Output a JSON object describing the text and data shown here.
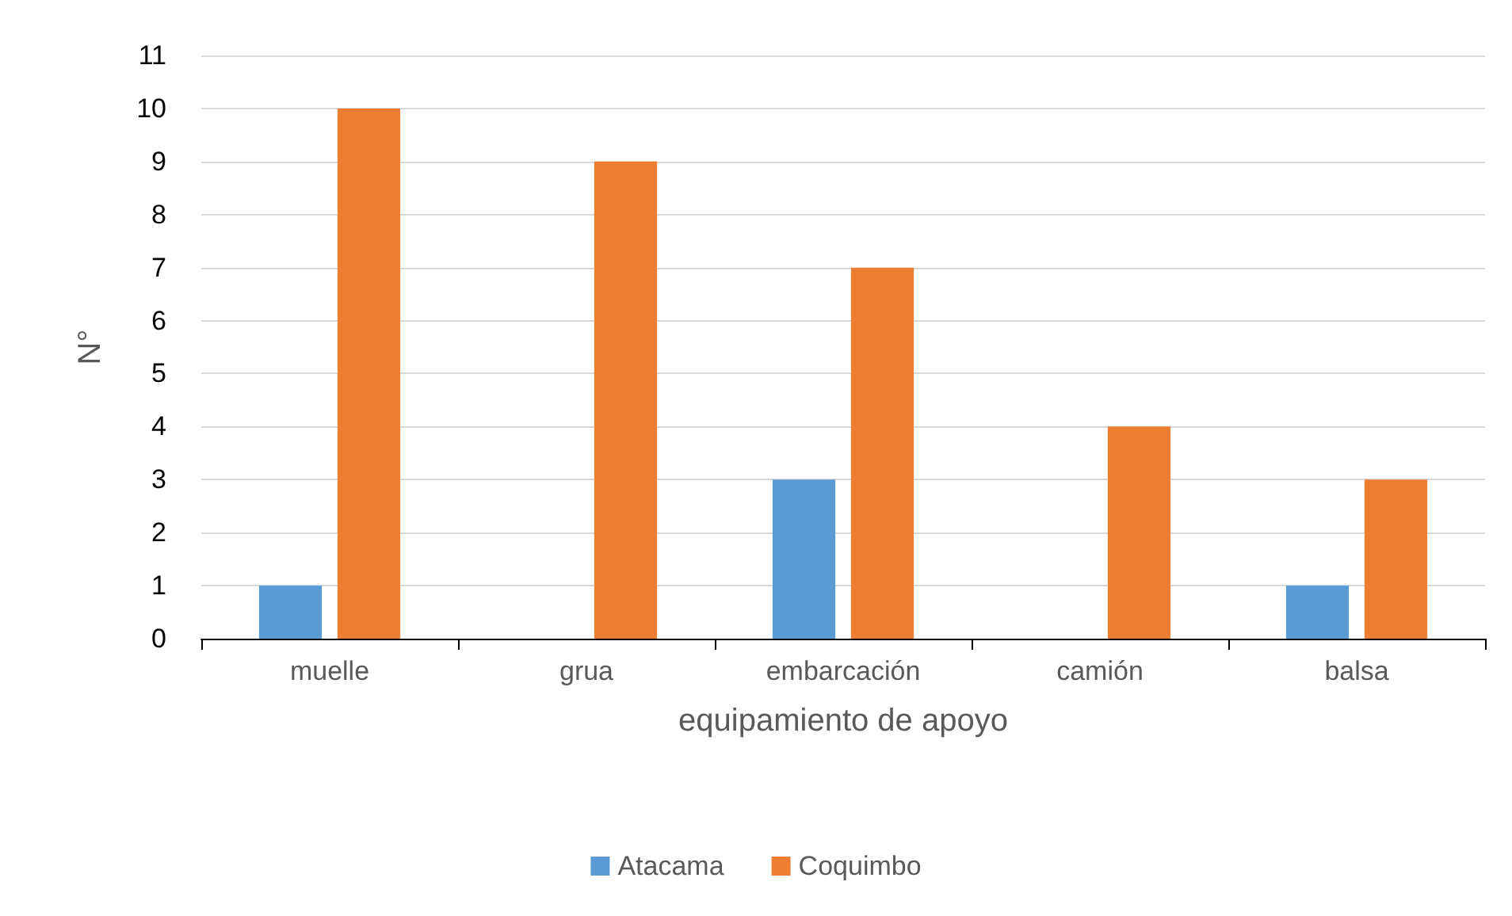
{
  "chart_data": {
    "type": "bar",
    "xlabel": "equipamiento de apoyo",
    "ylabel": "N°",
    "categories": [
      "muelle",
      "grua",
      "embarcación",
      "camión",
      "balsa"
    ],
    "series": [
      {
        "name": "Atacama",
        "color": "#5b9bd5",
        "values": [
          1,
          0,
          3,
          0,
          1
        ]
      },
      {
        "name": "Coquimbo",
        "color": "#ed7d31",
        "values": [
          10,
          9,
          7,
          4,
          3
        ]
      }
    ],
    "ylim": [
      0,
      11
    ],
    "yticks": [
      0,
      1,
      2,
      3,
      4,
      5,
      6,
      7,
      8,
      9,
      10,
      11
    ],
    "grid": "y",
    "legend": "bottom"
  }
}
